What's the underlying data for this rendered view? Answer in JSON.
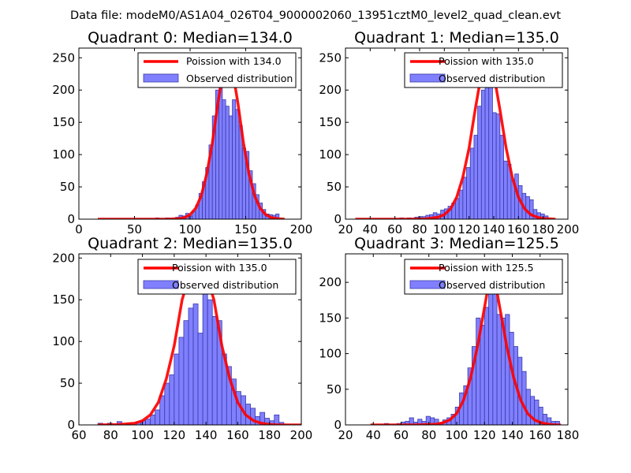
{
  "header": {
    "title": "Data file: modeM0/AS1A04_026T04_9000002060_13951cztM0_level2_quad_clean.evt"
  },
  "colors": {
    "bar_fill": "#8080ff",
    "bar_edge": "#3a3aa8",
    "curve": "#ff0000",
    "frame": "#000000"
  },
  "chart_data": [
    {
      "type": "bar",
      "title": "Quadrant 0: Median=134.0",
      "median": 134.0,
      "xlim": [
        0,
        200
      ],
      "ylim": [
        0,
        265
      ],
      "xticks": [
        0,
        50,
        100,
        150,
        200
      ],
      "yticks": [
        0,
        50,
        100,
        150,
        200,
        250
      ],
      "legend": [
        "Poission with 134.0",
        "Observed distribution"
      ],
      "bins": [
        [
          69,
          72,
          2
        ],
        [
          78,
          81,
          2
        ],
        [
          81,
          84,
          1
        ],
        [
          84,
          87,
          1
        ],
        [
          87,
          90,
          3
        ],
        [
          90,
          93,
          6
        ],
        [
          93,
          96,
          5
        ],
        [
          96,
          99,
          9
        ],
        [
          99,
          102,
          5
        ],
        [
          102,
          105,
          12
        ],
        [
          105,
          108,
          22
        ],
        [
          108,
          111,
          40
        ],
        [
          111,
          114,
          58
        ],
        [
          114,
          117,
          80
        ],
        [
          117,
          120,
          115
        ],
        [
          120,
          123,
          160
        ],
        [
          123,
          126,
          200
        ],
        [
          126,
          129,
          220
        ],
        [
          129,
          132,
          185
        ],
        [
          132,
          135,
          175
        ],
        [
          135,
          138,
          160
        ],
        [
          138,
          141,
          185
        ],
        [
          141,
          144,
          170
        ],
        [
          144,
          147,
          145
        ],
        [
          147,
          150,
          110
        ],
        [
          150,
          153,
          105
        ],
        [
          153,
          156,
          75
        ],
        [
          156,
          159,
          55
        ],
        [
          159,
          162,
          38
        ],
        [
          162,
          165,
          25
        ],
        [
          165,
          168,
          15
        ],
        [
          168,
          171,
          8
        ],
        [
          171,
          174,
          7
        ],
        [
          174,
          177,
          6
        ],
        [
          177,
          180,
          8
        ],
        [
          180,
          183,
          2
        ]
      ],
      "curve": {
        "x": [
          17,
          60,
          80,
          90,
          95,
          100,
          105,
          110,
          115,
          120,
          125,
          130,
          134,
          138,
          143,
          148,
          153,
          158,
          163,
          168,
          173,
          180,
          185
        ],
        "y": [
          0,
          0,
          0,
          0.8,
          2.5,
          7,
          17,
          36,
          70,
          118,
          180,
          232,
          255,
          232,
          180,
          118,
          70,
          36,
          17,
          7,
          2.5,
          0.5,
          0
        ]
      }
    },
    {
      "type": "bar",
      "title": "Quadrant 1: Median=135.0",
      "median": 135.0,
      "xlim": [
        20,
        200
      ],
      "ylim": [
        0,
        265
      ],
      "xticks": [
        20,
        40,
        60,
        80,
        100,
        120,
        140,
        160,
        180,
        200
      ],
      "yticks": [
        0,
        50,
        100,
        150,
        200,
        250
      ],
      "legend": [
        "Poission with 135.0",
        "Observed distribution"
      ],
      "bins": [
        [
          64,
          67,
          2
        ],
        [
          70,
          73,
          2
        ],
        [
          76,
          79,
          3
        ],
        [
          79,
          82,
          4
        ],
        [
          82,
          85,
          4
        ],
        [
          85,
          88,
          6
        ],
        [
          88,
          91,
          7
        ],
        [
          91,
          94,
          10
        ],
        [
          94,
          97,
          8
        ],
        [
          97,
          100,
          14
        ],
        [
          100,
          103,
          16
        ],
        [
          103,
          106,
          20
        ],
        [
          106,
          109,
          25
        ],
        [
          109,
          112,
          32
        ],
        [
          112,
          115,
          45
        ],
        [
          115,
          118,
          65
        ],
        [
          118,
          121,
          80
        ],
        [
          121,
          124,
          110
        ],
        [
          124,
          127,
          130
        ],
        [
          127,
          130,
          175
        ],
        [
          130,
          133,
          200
        ],
        [
          133,
          136,
          250
        ],
        [
          136,
          139,
          205
        ],
        [
          139,
          142,
          165
        ],
        [
          142,
          145,
          163
        ],
        [
          145,
          148,
          130
        ],
        [
          148,
          151,
          90
        ],
        [
          151,
          154,
          85
        ],
        [
          154,
          157,
          60
        ],
        [
          157,
          160,
          70
        ],
        [
          160,
          163,
          52
        ],
        [
          163,
          166,
          40
        ],
        [
          166,
          169,
          35
        ],
        [
          169,
          172,
          30
        ],
        [
          172,
          175,
          15
        ],
        [
          175,
          178,
          10
        ],
        [
          178,
          181,
          8
        ],
        [
          181,
          184,
          5
        ],
        [
          184,
          187,
          2
        ]
      ],
      "curve": {
        "x": [
          28,
          70,
          85,
          95,
          100,
          105,
          110,
          115,
          120,
          125,
          130,
          135,
          140,
          145,
          150,
          155,
          160,
          165,
          170,
          175,
          180,
          190
        ],
        "y": [
          0,
          0,
          0.5,
          3,
          7,
          16,
          34,
          65,
          110,
          170,
          225,
          255,
          225,
          170,
          110,
          65,
          34,
          16,
          7,
          3,
          1,
          0
        ]
      }
    },
    {
      "type": "bar",
      "title": "Quadrant 2: Median=135.0",
      "median": 135.0,
      "xlim": [
        60,
        200
      ],
      "ylim": [
        0,
        205
      ],
      "xticks": [
        60,
        80,
        100,
        120,
        140,
        160,
        180,
        200
      ],
      "yticks": [
        0,
        50,
        100,
        150,
        200
      ],
      "legend": [
        "Poission with 135.0",
        "Observed distribution"
      ],
      "bins": [
        [
          72,
          75,
          2
        ],
        [
          78,
          81,
          2
        ],
        [
          84,
          87,
          4
        ],
        [
          90,
          93,
          2
        ],
        [
          96,
          99,
          3
        ],
        [
          99,
          102,
          5
        ],
        [
          102,
          105,
          7
        ],
        [
          105,
          108,
          12
        ],
        [
          108,
          111,
          18
        ],
        [
          111,
          114,
          35
        ],
        [
          114,
          117,
          50
        ],
        [
          117,
          120,
          60
        ],
        [
          120,
          123,
          85
        ],
        [
          123,
          126,
          105
        ],
        [
          126,
          129,
          125
        ],
        [
          129,
          132,
          140
        ],
        [
          132,
          135,
          145
        ],
        [
          135,
          138,
          110
        ],
        [
          138,
          141,
          165
        ],
        [
          141,
          144,
          150
        ],
        [
          144,
          147,
          130
        ],
        [
          147,
          150,
          125
        ],
        [
          150,
          153,
          85
        ],
        [
          153,
          156,
          70
        ],
        [
          156,
          159,
          55
        ],
        [
          159,
          162,
          40
        ],
        [
          162,
          165,
          35
        ],
        [
          165,
          168,
          25
        ],
        [
          168,
          171,
          20
        ],
        [
          171,
          174,
          10
        ],
        [
          174,
          177,
          15
        ],
        [
          177,
          180,
          8
        ],
        [
          180,
          183,
          5
        ],
        [
          183,
          186,
          12
        ],
        [
          186,
          189,
          3
        ]
      ],
      "curve": {
        "x": [
          72,
          85,
          95,
          100,
          105,
          110,
          115,
          120,
          125,
          130,
          135,
          140,
          145,
          150,
          155,
          160,
          165,
          170,
          175,
          180,
          185,
          200
        ],
        "y": [
          0,
          0.5,
          2,
          5,
          12,
          27,
          55,
          95,
          150,
          182,
          195,
          182,
          150,
          95,
          55,
          27,
          12,
          5,
          2,
          0.6,
          0,
          0
        ]
      }
    },
    {
      "type": "bar",
      "title": "Quadrant 3: Median=125.5",
      "median": 125.5,
      "xlim": [
        20,
        180
      ],
      "ylim": [
        0,
        240
      ],
      "xticks": [
        20,
        40,
        60,
        80,
        100,
        120,
        140,
        160,
        180
      ],
      "yticks": [
        0,
        50,
        100,
        150,
        200
      ],
      "legend": [
        "Poission with 125.5",
        "Observed distribution"
      ],
      "bins": [
        [
          48,
          51,
          2
        ],
        [
          57,
          60,
          2
        ],
        [
          60,
          63,
          4
        ],
        [
          63,
          66,
          5
        ],
        [
          66,
          69,
          10
        ],
        [
          69,
          72,
          4
        ],
        [
          72,
          75,
          8
        ],
        [
          75,
          78,
          5
        ],
        [
          78,
          81,
          12
        ],
        [
          81,
          84,
          10
        ],
        [
          84,
          87,
          8
        ],
        [
          87,
          90,
          3
        ],
        [
          90,
          93,
          7
        ],
        [
          93,
          96,
          10
        ],
        [
          96,
          99,
          15
        ],
        [
          99,
          102,
          25
        ],
        [
          102,
          105,
          45
        ],
        [
          105,
          108,
          55
        ],
        [
          108,
          111,
          80
        ],
        [
          111,
          114,
          110
        ],
        [
          114,
          117,
          150
        ],
        [
          117,
          120,
          140
        ],
        [
          120,
          123,
          165
        ],
        [
          123,
          126,
          195
        ],
        [
          126,
          129,
          210
        ],
        [
          129,
          132,
          155
        ],
        [
          132,
          135,
          150
        ],
        [
          135,
          138,
          155
        ],
        [
          138,
          141,
          130
        ],
        [
          141,
          144,
          110
        ],
        [
          144,
          147,
          95
        ],
        [
          147,
          150,
          75
        ],
        [
          150,
          153,
          50
        ],
        [
          153,
          156,
          40
        ],
        [
          156,
          159,
          35
        ],
        [
          159,
          162,
          25
        ],
        [
          162,
          165,
          15
        ],
        [
          165,
          168,
          10
        ],
        [
          168,
          171,
          5
        ],
        [
          171,
          174,
          5
        ]
      ],
      "curve": {
        "x": [
          38,
          70,
          85,
          90,
          95,
          100,
          105,
          110,
          115,
          120,
          125.5,
          131,
          136,
          141,
          146,
          151,
          156,
          161,
          166,
          171,
          175
        ],
        "y": [
          0,
          0,
          1,
          3,
          7,
          16,
          35,
          66,
          110,
          165,
          225,
          165,
          110,
          66,
          35,
          16,
          7,
          3,
          1,
          0,
          0
        ]
      }
    }
  ]
}
